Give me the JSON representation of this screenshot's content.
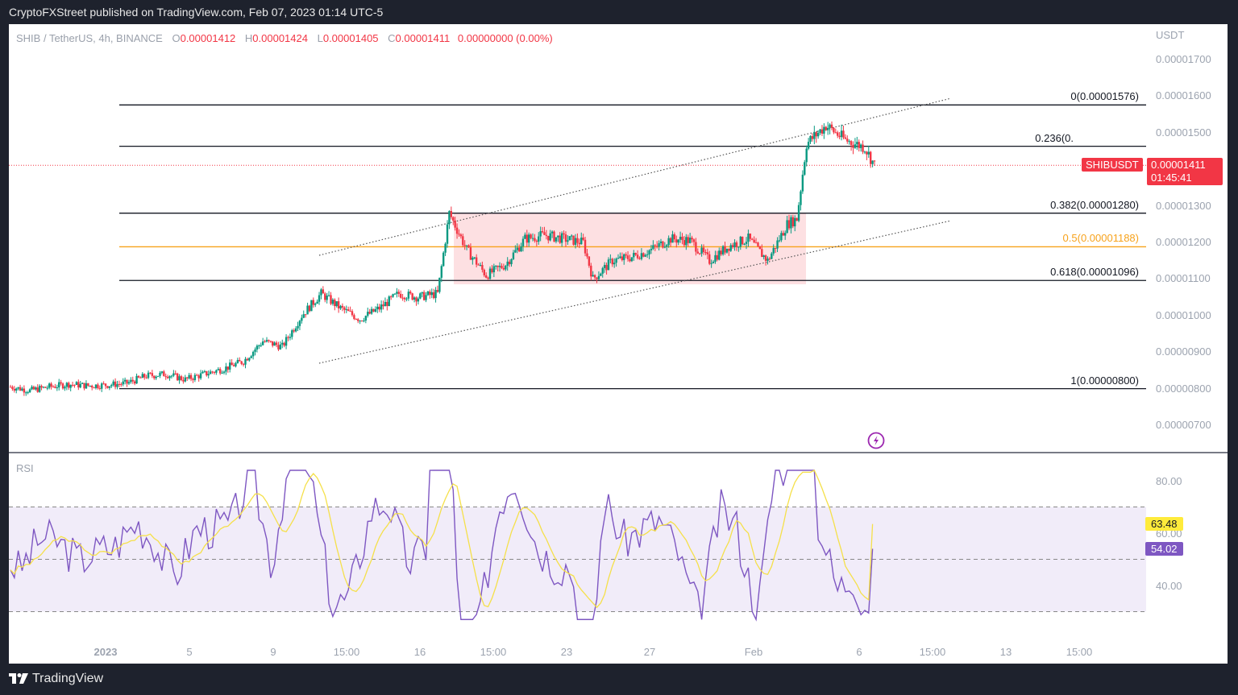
{
  "publish_bar": {
    "text": "CryptoFXStreet published on TradingView.com, Feb 07, 2023 01:14 UTC-5"
  },
  "legend": {
    "symbol": "SHIB / TetherUS, 4h, BINANCE",
    "o_label": "O",
    "o": "0.00001412",
    "h_label": "H",
    "h": "0.00001424",
    "l_label": "L",
    "l": "0.00001405",
    "c_label": "C",
    "c": "0.00001411",
    "change": "0.00000000 (0.00%)"
  },
  "price_axis": {
    "unit": "USDT",
    "ticks": [
      "0.00001700",
      "0.00001600",
      "0.00001500",
      "0.00001300",
      "0.00001200",
      "0.00001100",
      "0.00001000",
      "0.00000900",
      "0.00000800",
      "0.00000700"
    ]
  },
  "last_price": {
    "symbol_tag": "SHIBUSDT",
    "price": "0.00001411",
    "countdown": "01:45:41",
    "color": "#f23645"
  },
  "fib_levels": [
    {
      "label": "0(0.00001576)",
      "value": 1.576e-05,
      "color": "#131722"
    },
    {
      "label": "0.236(0.",
      "value": 1.463e-05,
      "color": "#131722"
    },
    {
      "label": "0.382(0.00001280)",
      "value": 1.28e-05,
      "color": "#131722"
    },
    {
      "label": "0.5(0.00001188)",
      "value": 1.188e-05,
      "color": "#f7a21b"
    },
    {
      "label": "0.618(0.00001096)",
      "value": 1.096e-05,
      "color": "#131722"
    },
    {
      "label": "1(0.00000800)",
      "value": 8e-06,
      "color": "#131722"
    }
  ],
  "rsi": {
    "title": "RSI",
    "ticks": [
      "80.00",
      "60.00",
      "40.00"
    ],
    "ma_value": "63.48",
    "ma_color": "#ffeb3b",
    "rsi_value": "54.02",
    "rsi_color": "#7e57c2"
  },
  "time_axis": {
    "ticks": [
      {
        "label": "2023",
        "x": 131,
        "bold": true
      },
      {
        "label": "5",
        "x": 235
      },
      {
        "label": "9",
        "x": 339
      },
      {
        "label": "15:00",
        "x": 430
      },
      {
        "label": "16",
        "x": 521
      },
      {
        "label": "15:00",
        "x": 612
      },
      {
        "label": "23",
        "x": 703
      },
      {
        "label": "27",
        "x": 806
      },
      {
        "label": "Feb",
        "x": 935
      },
      {
        "label": "6",
        "x": 1066
      },
      {
        "label": "15:00",
        "x": 1157
      },
      {
        "label": "13",
        "x": 1248
      },
      {
        "label": "15:00",
        "x": 1339
      }
    ]
  },
  "footer": {
    "brand": "TradingView"
  },
  "colors": {
    "up": "#089981",
    "down": "#f23645",
    "range_box": "#fde0e2",
    "rsi_band": "#f1ecf9"
  },
  "chart_data": {
    "type": "candlestick",
    "title": "SHIB / TetherUS, 4h, BINANCE",
    "ylabel": "USDT",
    "ylim": [
      6.5e-06,
      1.75e-05
    ],
    "x_ticks": [
      "2023",
      "5",
      "9",
      "15:00",
      "16",
      "15:00",
      "23",
      "27",
      "Feb",
      "6",
      "15:00",
      "13",
      "15:00"
    ],
    "close_path": [
      [
        0,
        8.05e-06
      ],
      [
        10,
        7.95e-06
      ],
      [
        20,
        8.05e-06
      ],
      [
        30,
        8.12e-06
      ],
      [
        40,
        8.08e-06
      ],
      [
        50,
        8.1e-06
      ],
      [
        60,
        8.15e-06
      ],
      [
        70,
        8.35e-06
      ],
      [
        80,
        8.4e-06
      ],
      [
        90,
        8.25e-06
      ],
      [
        100,
        8.4e-06
      ],
      [
        110,
        8.55e-06
      ],
      [
        120,
        8.75e-06
      ],
      [
        130,
        9.3e-06
      ],
      [
        140,
        9.15e-06
      ],
      [
        150,
        1e-05
      ],
      [
        160,
        1.06e-05
      ],
      [
        170,
        1.02e-05
      ],
      [
        180,
        9.9e-06
      ],
      [
        190,
        1.02e-05
      ],
      [
        200,
        1.06e-05
      ],
      [
        210,
        1.05e-05
      ],
      [
        220,
        1.06e-05
      ],
      [
        226,
        1.28e-05
      ],
      [
        235,
        1.18e-05
      ],
      [
        245,
        1.11e-05
      ],
      [
        255,
        1.14e-05
      ],
      [
        265,
        1.21e-05
      ],
      [
        275,
        1.22e-05
      ],
      [
        285,
        1.21e-05
      ],
      [
        295,
        1.2e-05
      ],
      [
        300,
        1.1e-05
      ],
      [
        310,
        1.15e-05
      ],
      [
        320,
        1.16e-05
      ],
      [
        330,
        1.18e-05
      ],
      [
        340,
        1.21e-05
      ],
      [
        350,
        1.205e-05
      ],
      [
        360,
        1.15e-05
      ],
      [
        370,
        1.19e-05
      ],
      [
        380,
        1.21e-05
      ],
      [
        390,
        1.15e-05
      ],
      [
        400,
        1.25e-05
      ],
      [
        405,
        1.265e-05
      ],
      [
        410,
        1.47e-05
      ],
      [
        420,
        1.52e-05
      ],
      [
        430,
        1.48e-05
      ],
      [
        440,
        1.46e-05
      ],
      [
        445,
        1.411e-05
      ]
    ],
    "fibonacci": {
      "0": 1.576e-05,
      "0.236": 1.463e-05,
      "0.382": 1.28e-05,
      "0.5": 1.188e-05,
      "0.618": 1.096e-05,
      "1": 8e-06
    },
    "rsi_last": 54.02,
    "rsi_ma_last": 63.48,
    "rsi_bands": [
      70,
      50,
      30
    ],
    "rsi_ylim": [
      20,
      90
    ]
  }
}
